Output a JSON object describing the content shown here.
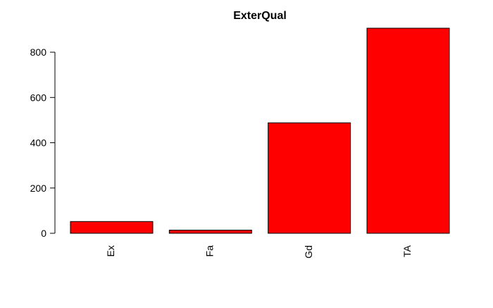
{
  "chart_data": {
    "type": "bar",
    "title": "ExterQual",
    "xlabel": "",
    "ylabel": "",
    "categories": [
      "Ex",
      "Fa",
      "Gd",
      "TA"
    ],
    "values": [
      52,
      14,
      488,
      906
    ],
    "ylim": [
      0,
      906
    ],
    "yticks": [
      0,
      200,
      400,
      600,
      800
    ],
    "bar_color": "#ff0000",
    "bar_border_color": "#000000",
    "x_tick_rotation": "vertical",
    "grid": false,
    "legend": "none"
  }
}
